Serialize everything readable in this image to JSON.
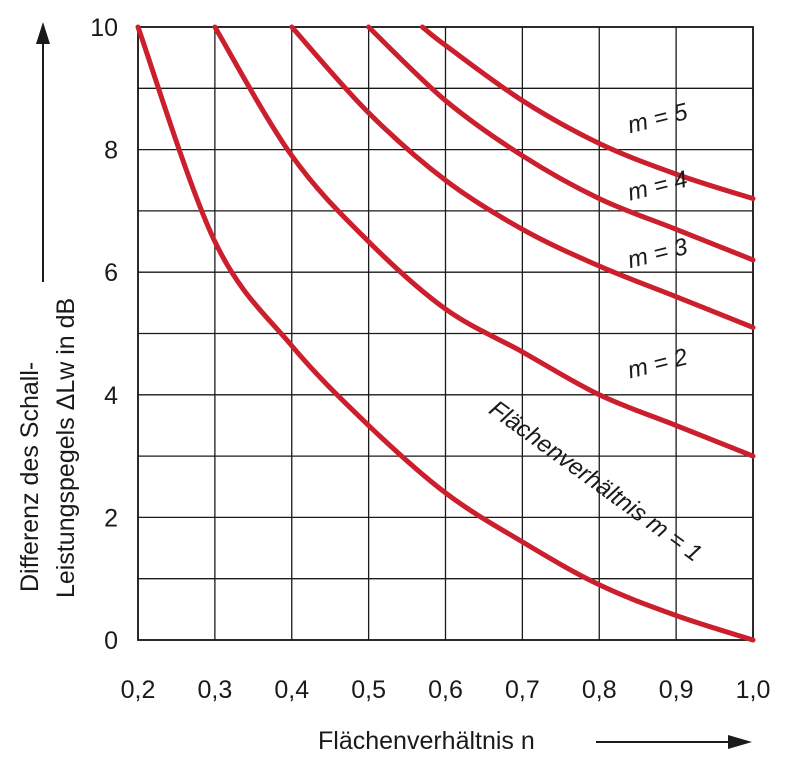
{
  "chart_data": {
    "type": "line",
    "xlabel": "Flächenverhältnis n",
    "ylabel_line1": "Differenz des Schall-",
    "ylabel_line2": "Leistungspegels ΔLw in dB",
    "xlim": [
      0.2,
      1.0
    ],
    "ylim": [
      0,
      10
    ],
    "x_ticks": [
      "0,2",
      "0,3",
      "0,4",
      "0,5",
      "0,6",
      "0,7",
      "0,8",
      "0,9",
      "1,0"
    ],
    "y_ticks": [
      "0",
      "2",
      "4",
      "6",
      "8",
      "10"
    ],
    "grid": true,
    "series": [
      {
        "name": "Flächenverhältnis m = 1",
        "x": [
          0.2,
          0.3,
          0.4,
          0.5,
          0.6,
          0.7,
          0.8,
          0.9,
          1.0
        ],
        "y": [
          10.0,
          6.5,
          4.8,
          3.5,
          2.4,
          1.6,
          0.9,
          0.4,
          0.0
        ]
      },
      {
        "name": "m = 2",
        "x": [
          0.3,
          0.4,
          0.5,
          0.6,
          0.7,
          0.8,
          0.9,
          1.0
        ],
        "y": [
          10.0,
          7.9,
          6.5,
          5.4,
          4.7,
          4.0,
          3.5,
          3.0
        ]
      },
      {
        "name": "m = 3",
        "x": [
          0.4,
          0.5,
          0.6,
          0.7,
          0.8,
          0.9,
          1.0
        ],
        "y": [
          10.0,
          8.6,
          7.5,
          6.7,
          6.1,
          5.6,
          5.1
        ]
      },
      {
        "name": "m = 4",
        "x": [
          0.5,
          0.6,
          0.7,
          0.8,
          0.9,
          1.0
        ],
        "y": [
          10.0,
          8.8,
          7.9,
          7.2,
          6.7,
          6.2
        ]
      },
      {
        "name": "m = 5",
        "x": [
          0.57,
          0.6,
          0.7,
          0.8,
          0.9,
          1.0
        ],
        "y": [
          10.0,
          9.7,
          8.8,
          8.1,
          7.6,
          7.2
        ]
      }
    ],
    "curve_labels": [
      {
        "text": "Flächenverhältnis m = 1",
        "x": 0.8,
        "y": 1.2
      },
      {
        "text": "m = 2",
        "x": 0.84,
        "y": 4.2
      },
      {
        "text": "m = 3",
        "x": 0.84,
        "y": 6.0
      },
      {
        "text": "m = 4",
        "x": 0.84,
        "y": 7.1
      },
      {
        "text": "m = 5",
        "x": 0.84,
        "y": 8.2
      }
    ],
    "line_color": "#cc1f2d"
  }
}
